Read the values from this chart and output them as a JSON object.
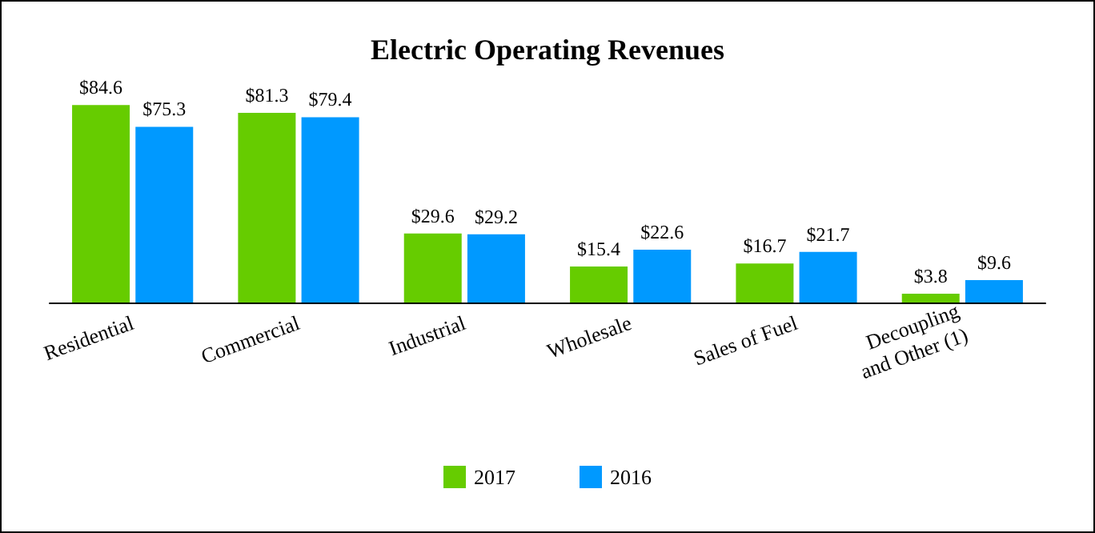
{
  "chart_data": {
    "type": "bar",
    "title": "Electric Operating Revenues",
    "categories": [
      "Residential",
      "Commercial",
      "Industrial",
      "Wholesale",
      "Sales of Fuel",
      "Decoupling\nand Other (1)"
    ],
    "series": [
      {
        "name": "2017",
        "color": "#66cc00",
        "values": [
          84.6,
          81.3,
          29.6,
          15.4,
          16.7,
          3.8
        ],
        "value_labels": [
          "$84.6",
          "$81.3",
          "$29.6",
          "$15.4",
          "$16.7",
          "$3.8"
        ]
      },
      {
        "name": "2016",
        "color": "#0099ff",
        "values": [
          75.3,
          79.4,
          29.2,
          22.6,
          21.7,
          9.6
        ],
        "value_labels": [
          "$75.3",
          "$79.4",
          "$29.2",
          "$22.6",
          "$21.7",
          "$9.6"
        ]
      }
    ],
    "legend": "bottom",
    "grid": false
  }
}
